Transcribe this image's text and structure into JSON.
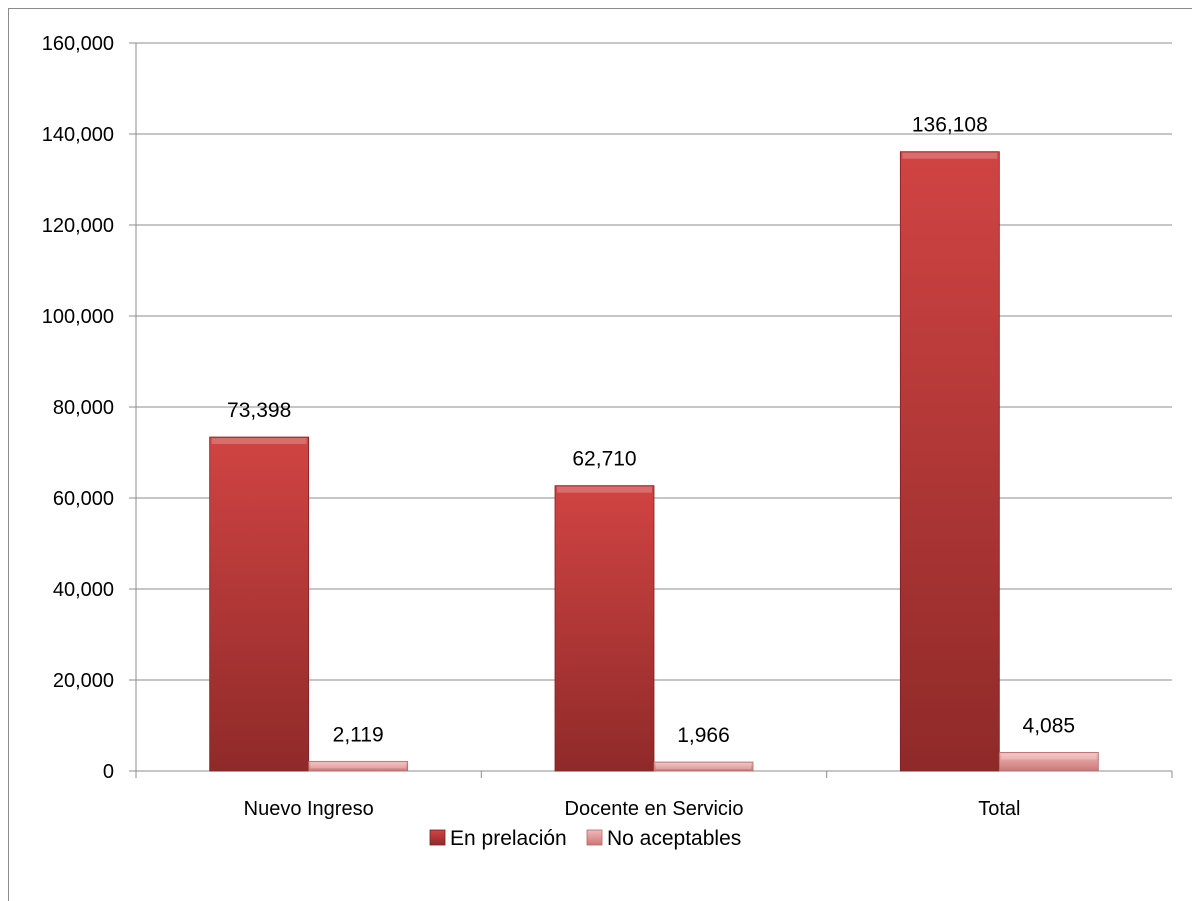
{
  "chart_data": {
    "type": "bar",
    "categories": [
      "Nuevo Ingreso",
      "Docente en Servicio",
      "Total"
    ],
    "series": [
      {
        "name": "En prelación",
        "values": [
          73398,
          62710,
          136108
        ],
        "labels": [
          "73,398",
          "62,710",
          "136,108"
        ],
        "color": "#c0393a"
      },
      {
        "name": "No aceptables",
        "values": [
          2119,
          1966,
          4085
        ],
        "labels": [
          "2,119",
          "1,966",
          "4,085"
        ],
        "color": "#e8a3a3"
      }
    ],
    "yticks": [
      0,
      20000,
      40000,
      60000,
      80000,
      100000,
      120000,
      140000,
      160000
    ],
    "ytick_labels": [
      "0",
      "20,000",
      "40,000",
      "60,000",
      "80,000",
      "100,000",
      "120,000",
      "140,000",
      "160,000"
    ],
    "ylim": [
      0,
      160000
    ],
    "grid": true,
    "legend_position": "bottom",
    "title": "",
    "xlabel": "",
    "ylabel": ""
  }
}
